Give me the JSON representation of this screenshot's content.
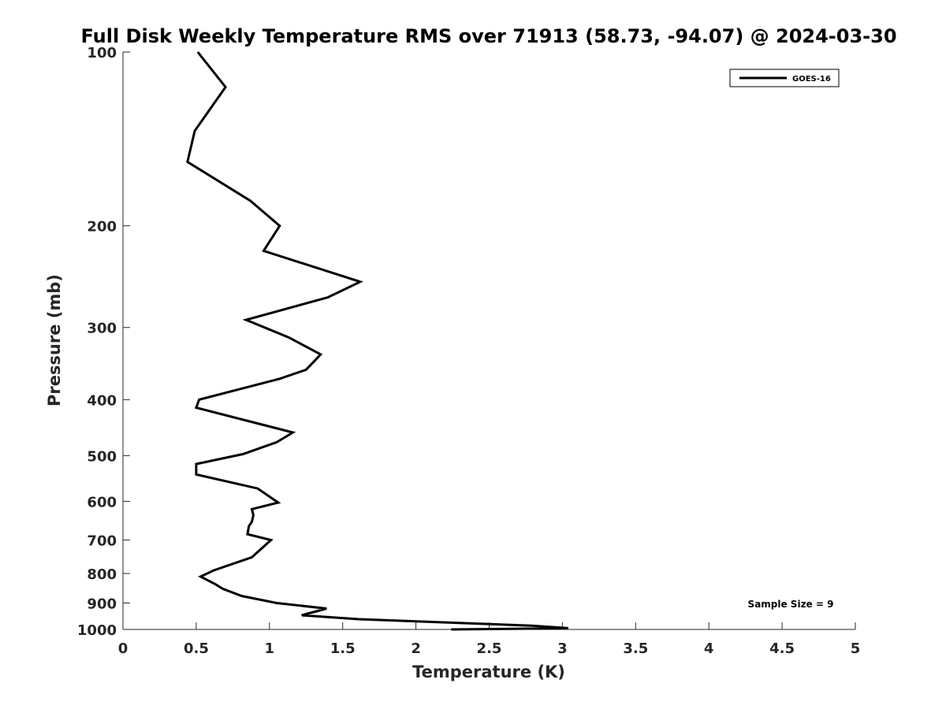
{
  "chart_data": {
    "type": "line",
    "title": "Full Disk Weekly Temperature RMS over 71913 (58.73, -94.07) @ 2024-03-30",
    "xlabel": "Temperature (K)",
    "ylabel": "Pressure (mb)",
    "xlim": [
      0,
      5
    ],
    "ylim": [
      100,
      1000
    ],
    "y_scale": "log",
    "y_reversed": true,
    "x_ticks": [
      0,
      0.5,
      1,
      1.5,
      2,
      2.5,
      3,
      3.5,
      4,
      4.5,
      5
    ],
    "x_tick_labels": [
      "0",
      "0.5",
      "1",
      "1.5",
      "2",
      "2.5",
      "3",
      "3.5",
      "4",
      "4.5",
      "5"
    ],
    "y_ticks": [
      100,
      200,
      300,
      400,
      500,
      600,
      700,
      800,
      900,
      1000
    ],
    "y_tick_labels": [
      "100",
      "200",
      "300",
      "400",
      "500",
      "600",
      "700",
      "800",
      "900",
      "1000"
    ],
    "grid": false,
    "legend_position": "top-right",
    "annotation": "Sample Size = 9",
    "series": [
      {
        "name": "GOES-16",
        "color": "#000000",
        "x": [
          0.51,
          0.7,
          0.49,
          0.44,
          0.87,
          1.07,
          0.96,
          1.62,
          1.4,
          0.84,
          1.13,
          1.35,
          1.25,
          1.07,
          0.52,
          0.5,
          1.16,
          1.05,
          0.82,
          0.5,
          0.5,
          0.92,
          1.06,
          0.88,
          0.89,
          0.88,
          0.86,
          0.85,
          1.01,
          0.88,
          0.62,
          0.53,
          0.63,
          0.68,
          0.81,
          1.05,
          1.39,
          1.22,
          1.61,
          2.79,
          3.04,
          2.24
        ],
        "y": [
          100,
          115,
          137,
          155,
          181,
          200,
          221,
          250,
          266,
          291,
          312,
          334,
          355,
          368,
          400,
          413,
          456,
          474,
          497,
          517,
          539,
          570,
          603,
          619,
          634,
          651,
          662,
          684,
          700,
          750,
          790,
          810,
          835,
          850,
          875,
          900,
          920,
          945,
          960,
          985,
          995,
          1000
        ]
      }
    ]
  }
}
